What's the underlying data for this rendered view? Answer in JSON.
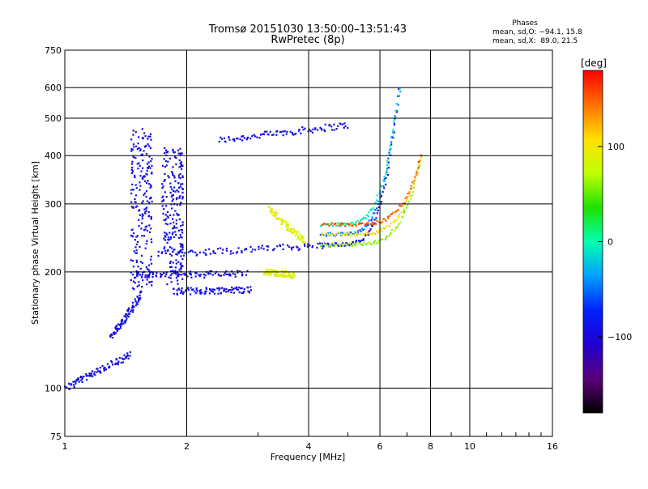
{
  "chart_data": {
    "type": "scatter",
    "title": "Tromsø 20151030 13:50:00–13:51:43",
    "subtitle": "RwPretec (8p)",
    "xlabel": "Frequency [MHz]",
    "ylabel": "Stationary phase Virtual Height [km]",
    "x_scale": "log",
    "y_scale": "log",
    "xlim": [
      1,
      16
    ],
    "ylim": [
      75,
      750
    ],
    "x_ticks": [
      1,
      2,
      4,
      6,
      8,
      10,
      16
    ],
    "x_tick_labels": [
      "1",
      "2",
      "4",
      "6",
      "8",
      "10",
      "16"
    ],
    "y_ticks": [
      75,
      100,
      200,
      300,
      400,
      500,
      600,
      750
    ],
    "y_tick_labels": [
      "75",
      "100",
      "200",
      "300",
      "400",
      "500",
      "600",
      "750"
    ],
    "grid": true,
    "stats": {
      "heading": "Phases",
      "line_o": "mean, sd,O: −94.1, 15.8",
      "line_x": "mean, sd,X:  89.0, 21.5"
    },
    "colorbar": {
      "label": "[deg]",
      "range": [
        -180,
        180
      ],
      "ticks": [
        100,
        0,
        -100
      ],
      "tick_labels": [
        "100",
        "0",
        "−100"
      ]
    },
    "series": [
      {
        "phase_deg": -94,
        "traces": [
          {
            "f_start": 2.4,
            "f_end": 5.0,
            "h_start": 438,
            "h_end": 480
          },
          {
            "f_start": 1.7,
            "f_end": 4.3,
            "h_start": 222,
            "h_end": 234
          },
          {
            "f_start": 1.85,
            "f_end": 2.9,
            "h_start": 178,
            "h_end": 180
          },
          {
            "f_start": 1.5,
            "f_end": 2.8,
            "h_start": 196,
            "h_end": 198
          },
          {
            "f_start": 1.3,
            "f_end": 1.55,
            "h_start": 135,
            "h_end": 175
          },
          {
            "f_start": 1.0,
            "f_end": 1.45,
            "h_start": 100,
            "h_end": 122
          }
        ],
        "clusters": [
          {
            "f": 1.55,
            "h_range": [
              180,
              470
            ]
          },
          {
            "f": 1.85,
            "h_range": [
              185,
              420
            ]
          }
        ]
      },
      {
        "phase_deg": 89,
        "traces": [
          {
            "f_start": 3.1,
            "f_end": 3.7,
            "h_start": 200,
            "h_end": 196
          },
          {
            "f_start": 3.2,
            "f_end": 3.9,
            "h_start": 290,
            "h_end": 240
          }
        ]
      }
    ],
    "cusps": [
      {
        "f": 6.7,
        "h": 590
      },
      {
        "f": 7.6,
        "h": 400
      }
    ]
  }
}
